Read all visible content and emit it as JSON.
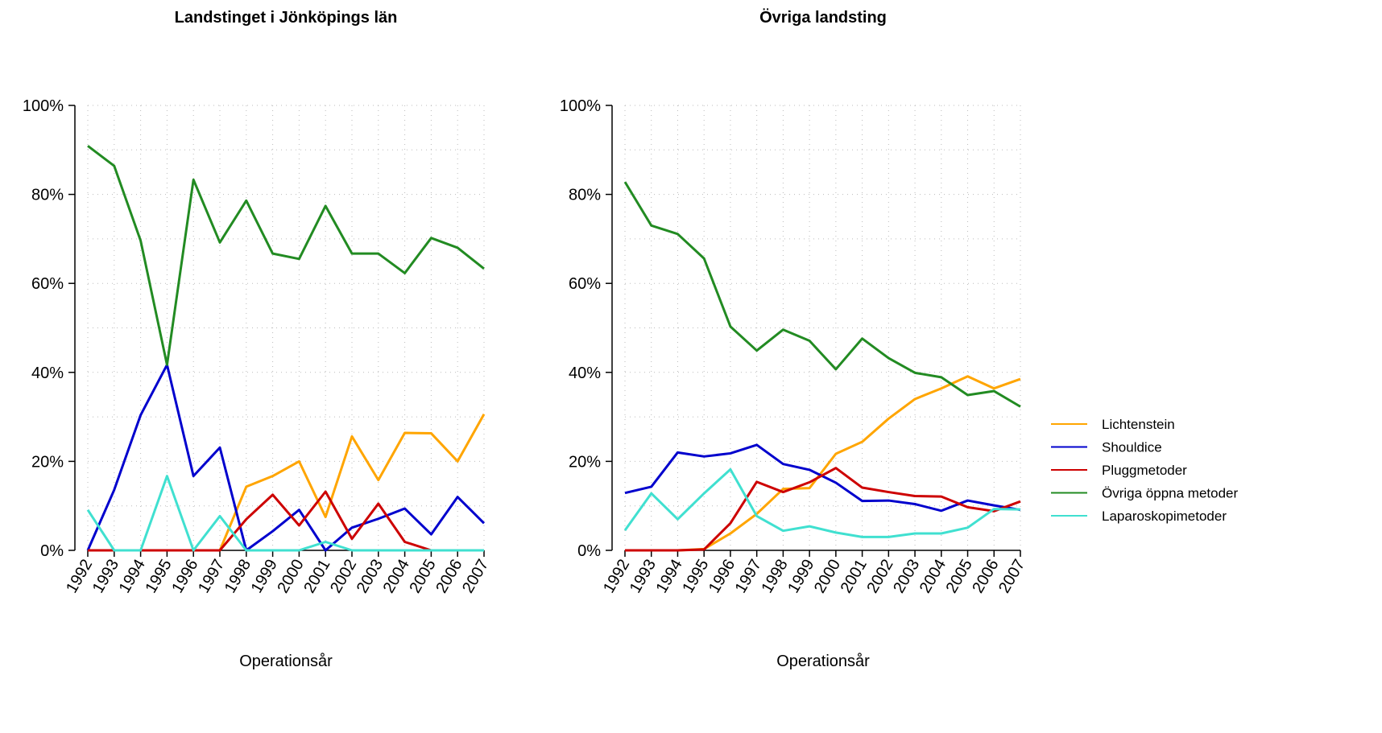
{
  "chart_data": [
    {
      "type": "line",
      "title": "Landstinget i Jönköpings län",
      "xlabel": "Operationsår",
      "categories": [
        "1992",
        "1993",
        "1994",
        "1995",
        "1996",
        "1997",
        "1998",
        "1999",
        "2000",
        "2001",
        "2002",
        "2003",
        "2004",
        "2005",
        "2006",
        "2007"
      ],
      "ylim": [
        0,
        100
      ],
      "yticks": [
        {
          "value": 0,
          "label": "0%"
        },
        {
          "value": 20,
          "label": "20%"
        },
        {
          "value": 40,
          "label": "40%"
        },
        {
          "value": 60,
          "label": "60%"
        },
        {
          "value": 80,
          "label": "80%"
        },
        {
          "value": 100,
          "label": "100%"
        }
      ],
      "grid": true,
      "series": [
        {
          "name": "Lichtenstein",
          "color": "#FFA500",
          "values": [
            0,
            0,
            0,
            0,
            0,
            0,
            14.3,
            16.7,
            20,
            7.5,
            25.6,
            15.8,
            26.4,
            26.3,
            20,
            30.6
          ]
        },
        {
          "name": "Shouldice",
          "color": "#0000CD",
          "values": [
            0,
            13.6,
            30.4,
            41.7,
            16.7,
            23.1,
            0,
            4.3,
            9.1,
            0,
            5.1,
            7.1,
            9.4,
            3.6,
            12,
            6.1
          ]
        },
        {
          "name": "Pluggmetoder",
          "color": "#CD0000",
          "values": [
            0,
            0,
            0,
            0,
            0,
            0,
            7,
            12.5,
            5.6,
            13.2,
            2.6,
            10.5,
            1.9,
            0,
            0,
            0
          ]
        },
        {
          "name": "Övriga öppna metoder",
          "color": "#228B22",
          "values": [
            90.9,
            86.4,
            69.6,
            41.7,
            83.3,
            69.2,
            78.6,
            66.7,
            65.5,
            77.4,
            66.7,
            66.7,
            62.3,
            70.2,
            68,
            63.3
          ]
        },
        {
          "name": "Laparoskopimetoder",
          "color": "#40E0D0",
          "values": [
            9.1,
            0,
            0,
            16.7,
            0,
            7.7,
            0,
            0,
            0,
            1.9,
            0,
            0,
            0,
            0,
            0,
            0
          ]
        }
      ]
    },
    {
      "type": "line",
      "title": "Övriga landsting",
      "xlabel": "Operationsår",
      "categories": [
        "1992",
        "1993",
        "1994",
        "1995",
        "1996",
        "1997",
        "1998",
        "1999",
        "2000",
        "2001",
        "2002",
        "2003",
        "2004",
        "2005",
        "2006",
        "2007"
      ],
      "ylim": [
        0,
        100
      ],
      "yticks": [
        {
          "value": 0,
          "label": "0%"
        },
        {
          "value": 20,
          "label": "20%"
        },
        {
          "value": 40,
          "label": "40%"
        },
        {
          "value": 60,
          "label": "60%"
        },
        {
          "value": 80,
          "label": "80%"
        },
        {
          "value": 100,
          "label": "100%"
        }
      ],
      "grid": true,
      "legend": "right",
      "series": [
        {
          "name": "Lichtenstein",
          "color": "#FFA500",
          "values": [
            0,
            0,
            0,
            0.3,
            3.8,
            8.2,
            13.8,
            14,
            21.7,
            24.4,
            29.6,
            34,
            36.4,
            39.1,
            36.4,
            38.5
          ]
        },
        {
          "name": "Shouldice",
          "color": "#0000CD",
          "values": [
            12.9,
            14.3,
            22,
            21.1,
            21.8,
            23.7,
            19.4,
            18.1,
            15.2,
            11.1,
            11.2,
            10.4,
            8.9,
            11.2,
            10.1,
            9.1
          ]
        },
        {
          "name": "Pluggmetoder",
          "color": "#CD0000",
          "values": [
            0,
            0,
            0,
            0.2,
            6.1,
            15.4,
            13.1,
            15.3,
            18.5,
            14.1,
            13.1,
            12.2,
            12.1,
            9.7,
            8.8,
            11
          ]
        },
        {
          "name": "Övriga öppna metoder",
          "color": "#228B22",
          "values": [
            82.8,
            73,
            71.1,
            65.6,
            50.3,
            44.9,
            49.6,
            47.1,
            40.7,
            47.6,
            43.2,
            39.9,
            38.9,
            34.9,
            35.8,
            32.3
          ]
        },
        {
          "name": "Laparoskopimetoder",
          "color": "#40E0D0",
          "values": [
            4.5,
            12.8,
            7,
            12.8,
            18.2,
            7.7,
            4.4,
            5.4,
            4,
            3,
            3,
            3.8,
            3.8,
            5.1,
            9.3,
            9.2
          ]
        }
      ]
    }
  ]
}
